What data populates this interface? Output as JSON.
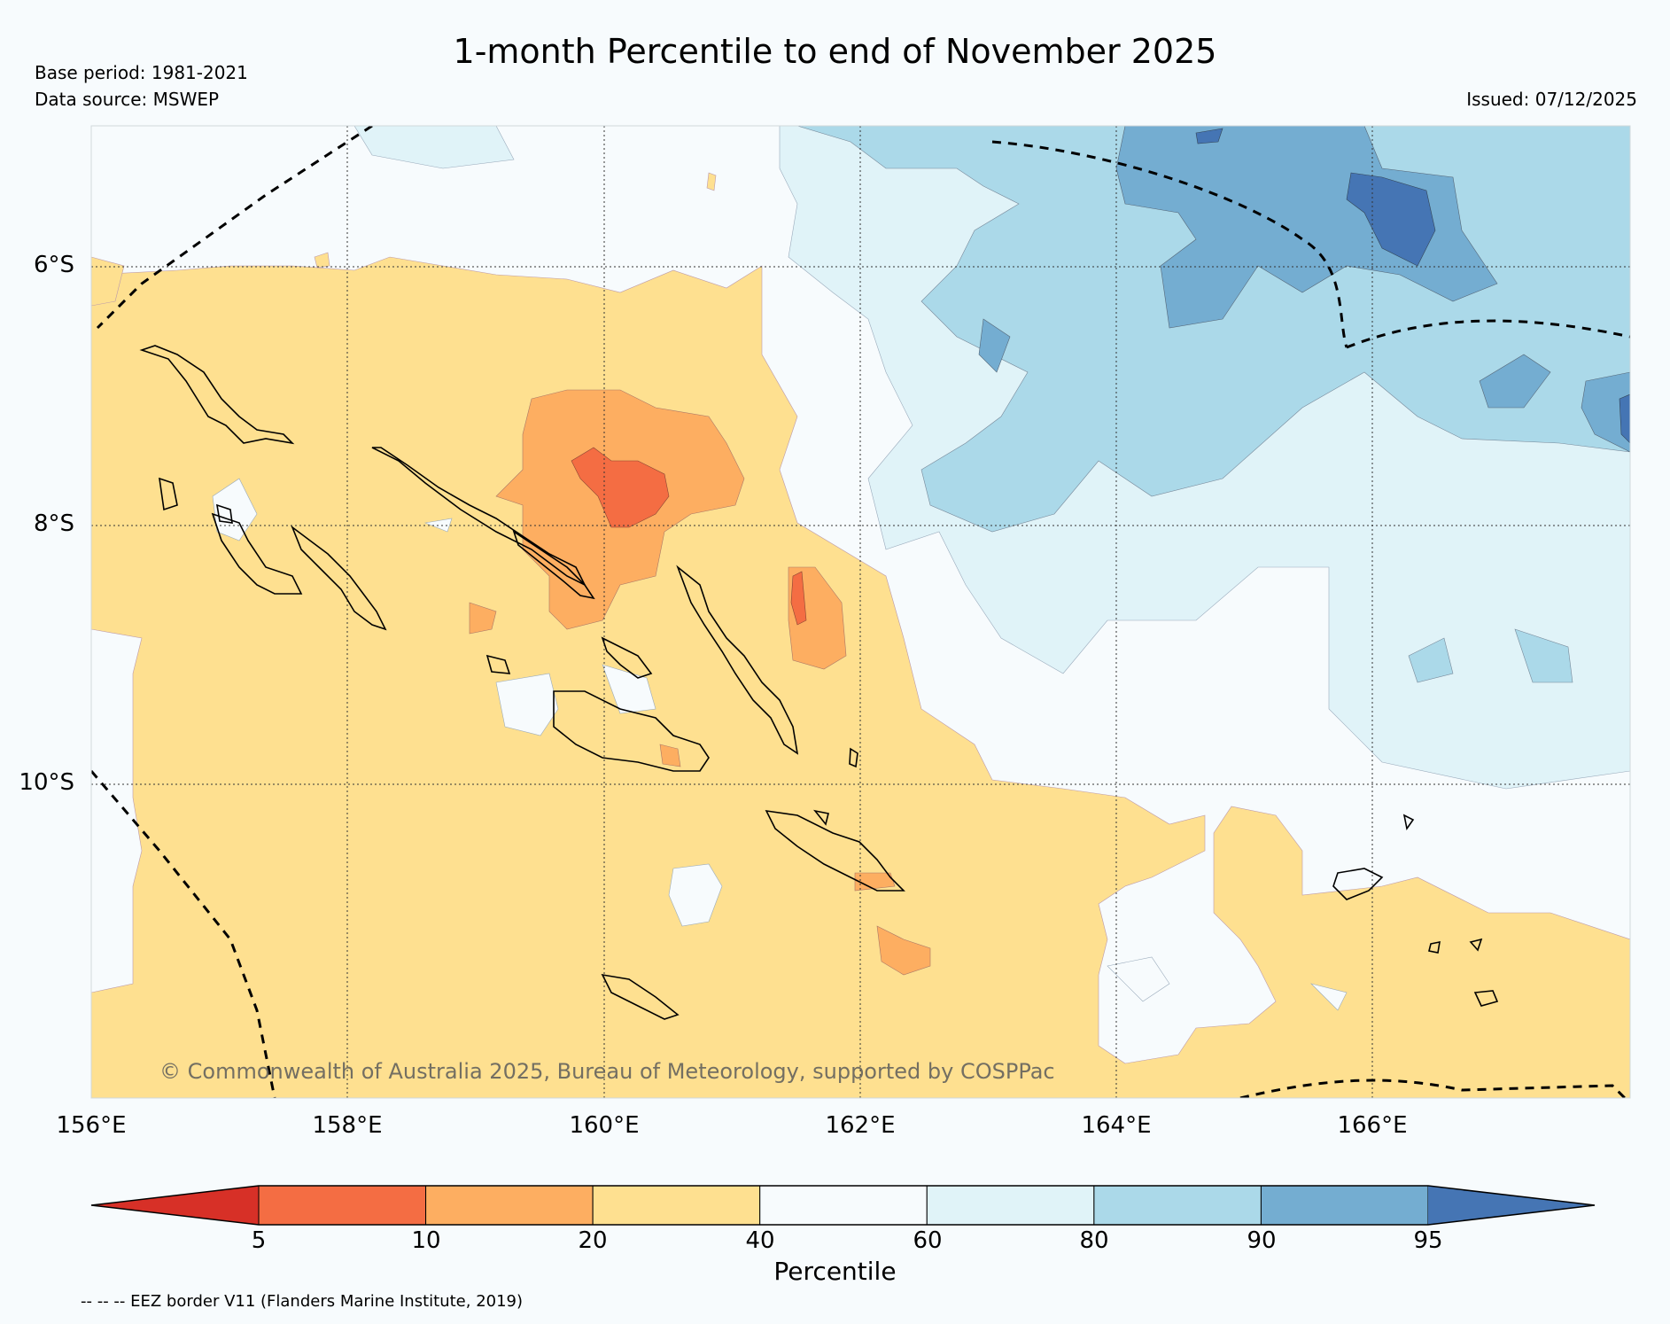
{
  "title": "1-month Percentile to end of November 2025",
  "base_period": "Base period: 1981-2021",
  "data_source": "Data source: MSWEP",
  "issued": "Issued: 07/12/2025",
  "copyright": "© Commonwealth of Australia 2025, Bureau of Meteorology, supported by COSPPac",
  "footnote": "-- -- -- EEZ border V11 (Flanders Marine Institute, 2019)",
  "map": {
    "lon_range": [
      156,
      168
    ],
    "lat_range": [
      -12.4,
      -4.9
    ],
    "lat_labels": [
      {
        "value": -6,
        "label": "6°S"
      },
      {
        "value": -8,
        "label": "8°S"
      },
      {
        "value": -10,
        "label": "10°S"
      }
    ],
    "lon_labels": [
      {
        "value": 156,
        "label": "156°E"
      },
      {
        "value": 158,
        "label": "158°E"
      },
      {
        "value": 160,
        "label": "160°E"
      },
      {
        "value": 162,
        "label": "162°E"
      },
      {
        "value": 164,
        "label": "164°E"
      },
      {
        "value": 166,
        "label": "166°E"
      }
    ]
  },
  "colorbar": {
    "label": "Percentile",
    "ticks": [
      "5",
      "10",
      "20",
      "40",
      "60",
      "80",
      "90",
      "95"
    ],
    "bins": [
      {
        "range": "<5",
        "color": "#d73027"
      },
      {
        "range": "5-10",
        "color": "#f46d43"
      },
      {
        "range": "10-20",
        "color": "#fdae61"
      },
      {
        "range": "20-40",
        "color": "#fee090"
      },
      {
        "range": "40-60",
        "color": "#f7fbfd"
      },
      {
        "range": "60-80",
        "color": "#e0f3f8"
      },
      {
        "range": "80-90",
        "color": "#abd9e9"
      },
      {
        "range": "90-95",
        "color": "#74add1"
      },
      {
        "range": ">95",
        "color": "#4575b4"
      }
    ]
  }
}
